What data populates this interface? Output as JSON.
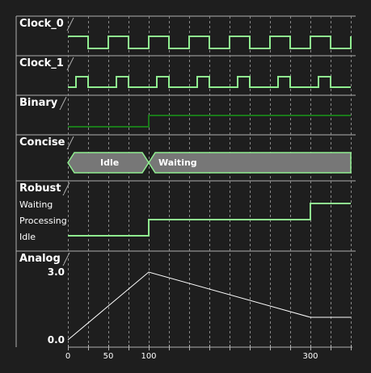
{
  "colors": {
    "background": "#1e1e1e",
    "signal": "#90ee90",
    "binary": "#1a7a1a",
    "bus_fill": "#777777",
    "separator": "#b0b0b0",
    "grid": "#8a8a8a",
    "analog": "#ffffff"
  },
  "tracks": {
    "clock0": {
      "name": "Clock_0"
    },
    "clock1": {
      "name": "Clock_1"
    },
    "binary": {
      "name": "Binary"
    },
    "concise": {
      "name": "Concise",
      "states": [
        "Idle",
        "Waiting"
      ]
    },
    "robust": {
      "name": "Robust",
      "levels": [
        "Waiting",
        "Processing",
        "Idle"
      ]
    },
    "analog": {
      "name": "Analog",
      "ymax": "3.0",
      "ymin": "0.0"
    }
  },
  "axis": {
    "ticks": [
      "0",
      "50",
      "100",
      "300"
    ]
  },
  "signals": {
    "clock0": {
      "period": 50,
      "high_first": true
    },
    "clock1": {
      "period": 50,
      "duty": 0.5,
      "offset": 10
    },
    "binary": [
      [
        0,
        0
      ],
      [
        100,
        1
      ],
      [
        350,
        1
      ]
    ],
    "concise": [
      [
        0,
        100,
        "Idle"
      ],
      [
        100,
        350,
        "Waiting"
      ]
    ],
    "robust": [
      [
        0,
        "Idle"
      ],
      [
        100,
        "Processing"
      ],
      [
        300,
        "Waiting"
      ]
    ],
    "analog": [
      [
        0,
        0.0
      ],
      [
        100,
        3.0
      ],
      [
        300,
        1.0
      ],
      [
        350,
        1.0
      ]
    ]
  }
}
